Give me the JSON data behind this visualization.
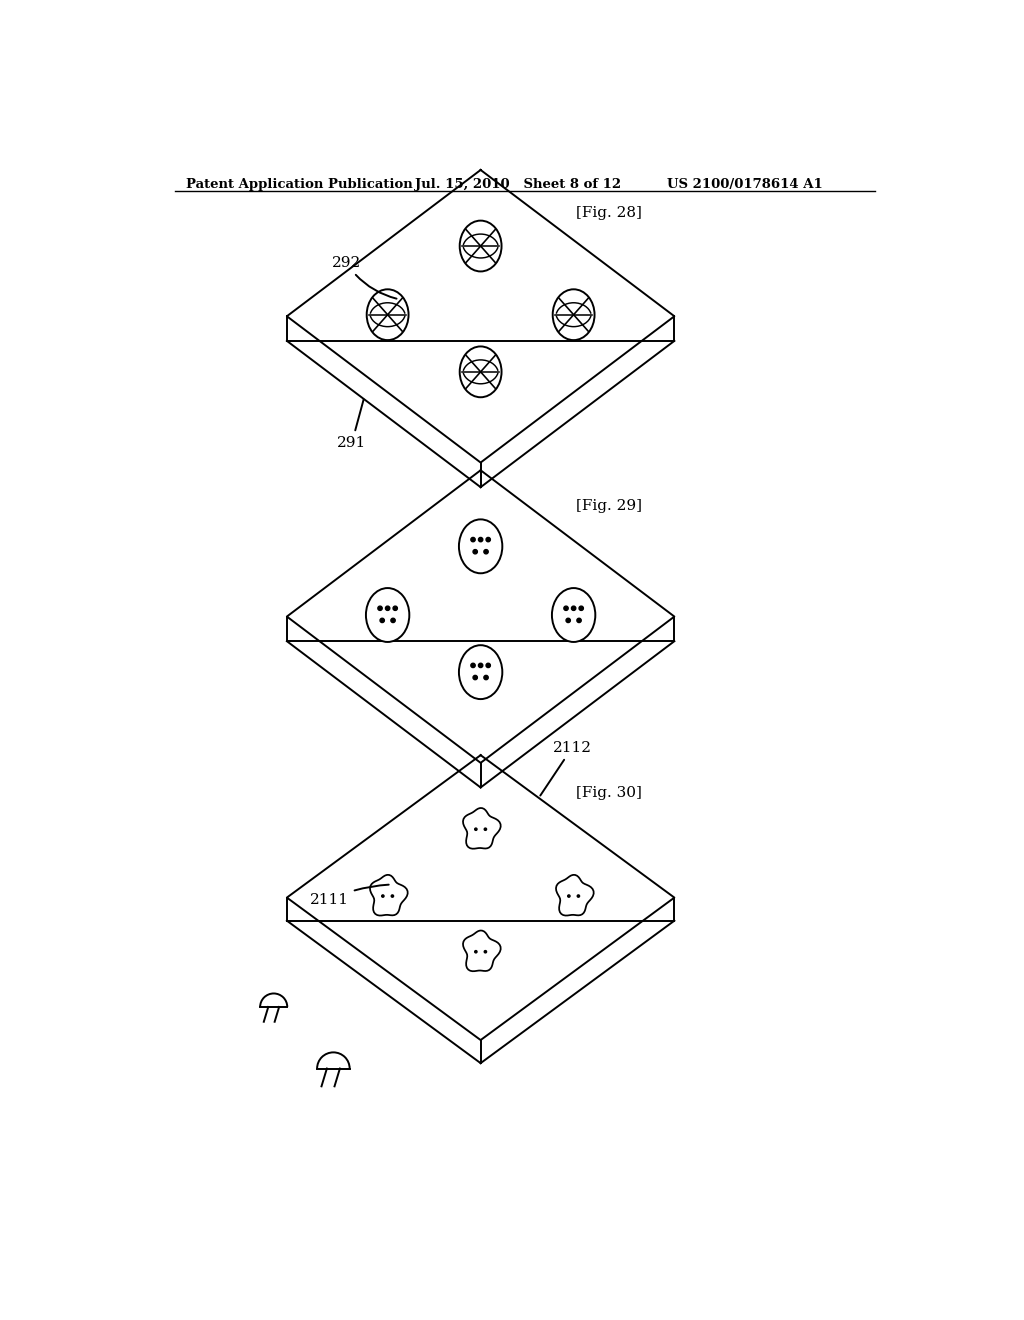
{
  "bg_color": "#ffffff",
  "header_left": "Patent Application Publication",
  "header_mid": "Jul. 15, 2010   Sheet 8 of 12",
  "header_right": "US 2100/0178614 A1",
  "fig28_label": "[Fig. 28]",
  "fig29_label": "[Fig. 29]",
  "fig30_label": "[Fig. 30]",
  "label_291": "291",
  "label_292": "292",
  "label_2111": "2111",
  "label_2112": "2112",
  "line_color": "#000000",
  "line_width": 1.4
}
